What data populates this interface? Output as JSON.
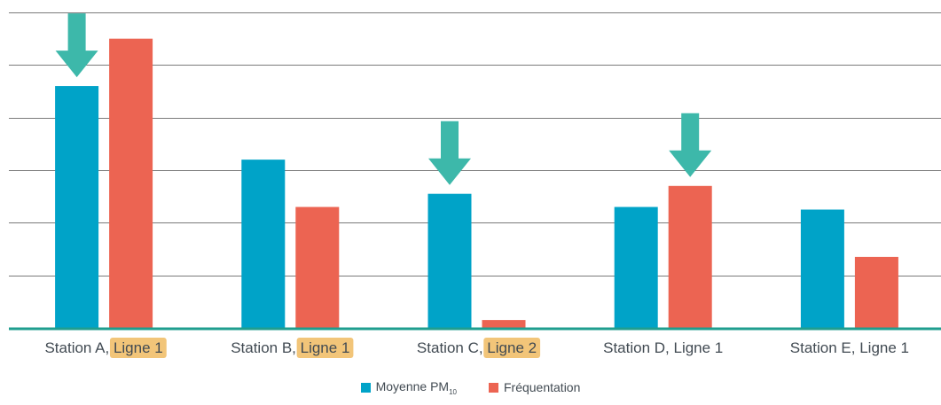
{
  "chart_data": {
    "type": "bar",
    "categories": [
      {
        "prefix": "Station A, ",
        "line": "Ligne 1",
        "highlight": true
      },
      {
        "prefix": "Station B, ",
        "line": "Ligne 1",
        "highlight": true
      },
      {
        "prefix": "Station C, ",
        "line": "Ligne 2",
        "highlight": true
      },
      {
        "prefix": "Station D, ",
        "line": "Ligne 1",
        "highlight": false
      },
      {
        "prefix": "Station E, ",
        "line": "Ligne 1",
        "highlight": false
      }
    ],
    "series": [
      {
        "name": "Moyenne PM",
        "name_sub": "10",
        "color": "#00a3c8",
        "values": [
          4.6,
          3.2,
          2.55,
          2.3,
          2.25
        ]
      },
      {
        "name": "Fréquentation",
        "color": "#ec6452",
        "values": [
          5.5,
          2.3,
          0.15,
          2.7,
          1.35
        ]
      }
    ],
    "ylim": [
      0,
      6
    ],
    "grid": true,
    "arrow_markers": [
      {
        "category": 0,
        "series": 0
      },
      {
        "category": 2,
        "series": 0
      },
      {
        "category": 3,
        "series": 1
      }
    ],
    "colors": {
      "arrow": "#3db8aa",
      "axis": "#1f9e8f",
      "grid": "#7a7a7a",
      "highlight_bg": "#f2c579"
    },
    "legend_position": "bottom"
  }
}
